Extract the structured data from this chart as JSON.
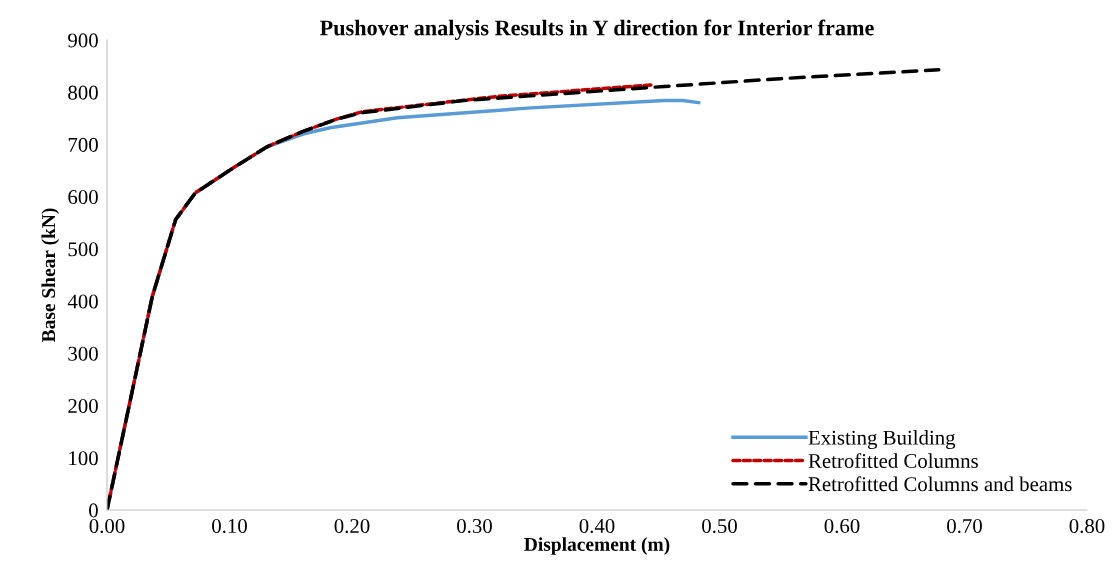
{
  "chart_data": {
    "type": "line",
    "title": "Pushover analysis Results in Y direction for Interior frame",
    "xlabel": "Displacement (m)",
    "ylabel": "Base Shear (kN)",
    "xlim": [
      0,
      0.8
    ],
    "xticks": [
      {
        "value": 0,
        "label": "0.00"
      },
      {
        "value": 0.1,
        "label": "0.10"
      },
      {
        "value": 0.2,
        "label": "0.20"
      },
      {
        "value": 0.3,
        "label": "0.30"
      },
      {
        "value": 0.4,
        "label": "0.40"
      },
      {
        "value": 0.5,
        "label": "0.50"
      },
      {
        "value": 0.6,
        "label": "0.60"
      },
      {
        "value": 0.7,
        "label": "0.70"
      },
      {
        "value": 0.8,
        "label": "0.80"
      }
    ],
    "ylim": [
      0,
      900
    ],
    "yticks": [
      0,
      100,
      200,
      300,
      400,
      500,
      600,
      700,
      800,
      900
    ],
    "grid": false,
    "legend": "bottom right",
    "marker": "none",
    "series": [
      {
        "name": "Existing Building",
        "color": "#5b9bd5",
        "line_style": "solid",
        "x": [
          0,
          0.037,
          0.056,
          0.072,
          0.105,
          0.131,
          0.16,
          0.182,
          0.237,
          0.346,
          0.455,
          0.47,
          0.483
        ],
        "values": [
          0,
          409,
          556,
          607,
          658,
          696,
          720,
          732,
          751,
          770,
          784,
          784,
          780
        ]
      },
      {
        "name": "Retrofitted Columns",
        "color": "#c00000",
        "line_style": "dotted",
        "x": [
          0,
          0.037,
          0.056,
          0.072,
          0.105,
          0.131,
          0.16,
          0.188,
          0.209,
          0.319,
          0.444
        ],
        "values": [
          0,
          409,
          556,
          607,
          658,
          696,
          725,
          749,
          763,
          792,
          814
        ]
      },
      {
        "name": "Retrofitted Columns and beams",
        "color": "#000000",
        "line_style": "dashed",
        "x": [
          0,
          0.037,
          0.056,
          0.072,
          0.105,
          0.131,
          0.16,
          0.188,
          0.209,
          0.291,
          0.455,
          0.55,
          0.679
        ],
        "values": [
          0,
          409,
          556,
          607,
          658,
          696,
          725,
          749,
          761,
          784,
          811,
          826,
          843
        ]
      }
    ]
  }
}
